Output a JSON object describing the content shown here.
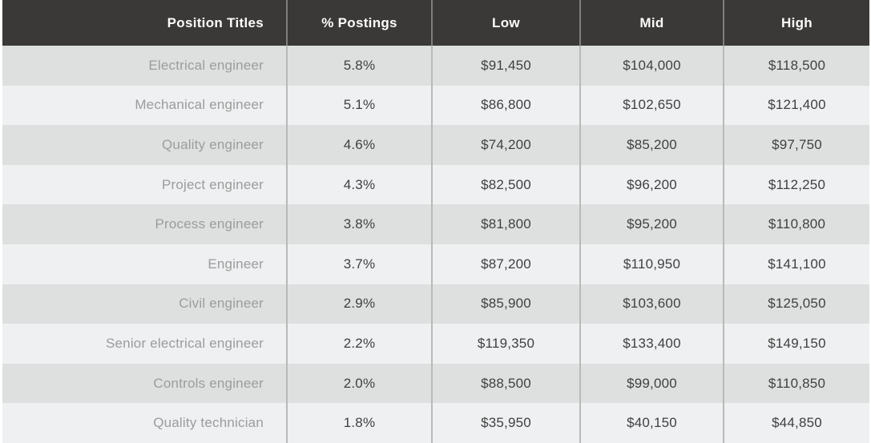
{
  "chart_data": {
    "type": "table",
    "columns": [
      "Position Titles",
      "% Postings",
      "Low",
      "Mid",
      "High"
    ],
    "rows": [
      [
        "Electrical engineer",
        "5.8%",
        "$91,450",
        "$104,000",
        "$118,500"
      ],
      [
        "Mechanical engineer",
        "5.1%",
        "$86,800",
        "$102,650",
        "$121,400"
      ],
      [
        "Quality engineer",
        "4.6%",
        "$74,200",
        "$85,200",
        "$97,750"
      ],
      [
        "Project engineer",
        "4.3%",
        "$82,500",
        "$96,200",
        "$112,250"
      ],
      [
        "Process engineer",
        "3.8%",
        "$81,800",
        "$95,200",
        "$110,800"
      ],
      [
        "Engineer",
        "3.7%",
        "$87,200",
        "$110,950",
        "$141,100"
      ],
      [
        "Civil engineer",
        "2.9%",
        "$85,900",
        "$103,600",
        "$125,050"
      ],
      [
        "Senior electrical engineer",
        "2.2%",
        "$119,350",
        "$133,400",
        "$149,150"
      ],
      [
        "Controls engineer",
        "2.0%",
        "$88,500",
        "$99,000",
        "$110,850"
      ],
      [
        "Quality technician",
        "1.8%",
        "$35,950",
        "$40,150",
        "$44,850"
      ]
    ]
  },
  "colors": {
    "header_bg": "#3b3937",
    "header_text": "#fbfbfb",
    "row_odd_bg": "#dee0df",
    "row_even_bg": "#eef0f1",
    "title_text": "#9b9d9c",
    "value_text": "#3f403f",
    "divider_header": "#7d7e7d",
    "divider_body": "#b7bab9"
  }
}
